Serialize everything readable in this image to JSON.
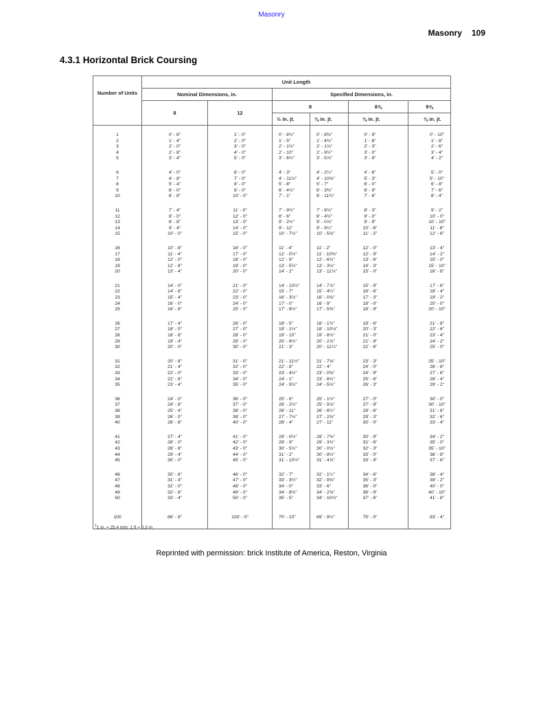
{
  "running_header": "Masonry",
  "page_header": {
    "section": "Masonry",
    "page_number": "109"
  },
  "heading": "4.3.1 Horizontal Brick Coursing",
  "table": {
    "header": {
      "number_of_units": "Number of Units",
      "unit_length": "Unit Length",
      "nominal": "Nominal Dimensions, in.",
      "specified": "Specified Dimensions, in.",
      "nominal_8": "8",
      "nominal_12": "12",
      "spec_8": "8",
      "spec_8_5_8": "8⅝",
      "spec_9_5_8": "9⅝",
      "joint_half": "½ in. jt.",
      "joint_3_8_a": "⅜ in. jt.",
      "joint_3_8_b": "⅜ in. jt.",
      "joint_3_8_c": "⅜ in. jt."
    },
    "groups": [
      [
        [
          "1",
          "0' - 8\"",
          "1' - 0\"",
          "0' - 8½\"",
          "0' - 8⅜\"",
          "0' - 9\"",
          "0' - 10\""
        ],
        [
          "2",
          "1' - 4\"",
          "2' - 0\"",
          "1' - 5\"",
          "1' - 4¾\"",
          "1' - 6\"",
          "1' - 8\""
        ],
        [
          "3",
          "2' - 0\"",
          "3' - 0\"",
          "2' - 1½\"",
          "2' - 1⅛\"",
          "2' - 3\"",
          "2' - 6\""
        ],
        [
          "4",
          "2' - 8\"",
          "4' - 0\"",
          "2' - 10\"",
          "2' - 9½\"",
          "3' - 0\"",
          "3' - 4\""
        ],
        [
          "5",
          "3' - 4\"",
          "5' - 0\"",
          "3' - 6½\"",
          "3' - 5⅞\"",
          "3' - 9\"",
          "4' - 2\""
        ]
      ],
      [
        [
          "6",
          "4' - 0\"",
          "6' - 0\"",
          "4' - 3\"",
          "4' - 2¼\"",
          "4' - 6\"",
          "5' - 0\""
        ],
        [
          "7",
          "4' - 8\"",
          "7' - 0\"",
          "4' - 11½\"",
          "4' - 10⅝\"",
          "5' - 3\"",
          "5' - 10\""
        ],
        [
          "8",
          "5' - 4\"",
          "8' - 0\"",
          "5' - 8\"",
          "5' - 7\"",
          "6' - 0\"",
          "6' - 8\""
        ],
        [
          "9",
          "6' - 0\"",
          "9' - 0\"",
          "6' - 4½\"",
          "6' - 3⅜\"",
          "6' - 9\"",
          "7' - 6\""
        ],
        [
          "10",
          "6' - 8\"",
          "10' - 0\"",
          "7' - 1\"",
          "6' - 11¾\"",
          "7' - 6\"",
          "8' - 4\""
        ]
      ],
      [
        [
          "11",
          "7' - 4\"",
          "11' - 0\"",
          "7' - 9½\"",
          "7' - 8⅛\"",
          "8' - 3\"",
          "9' - 2\""
        ],
        [
          "12",
          "8' - 0\"",
          "12' - 0\"",
          "8' - 6\"",
          "8' - 4½\"",
          "9' - 0\"",
          "10' - 0\""
        ],
        [
          "13",
          "8' - 8\"",
          "13' - 0\"",
          "9' - 2½\"",
          "9' - 0⅞\"",
          "9' - 9\"",
          "10' - 10\""
        ],
        [
          "14",
          "9' - 4\"",
          "14' - 0\"",
          "9' - 11\"",
          "9' - 9¼\"",
          "10' - 6\"",
          "11' - 8\""
        ],
        [
          "15",
          "10' - 0\"",
          "15' - 0\"",
          "10' - 7½\"",
          "10' - 5⅝\"",
          "11' - 3\"",
          "12' - 6\""
        ]
      ],
      [
        [
          "16",
          "10' - 8\"",
          "16' - 0\"",
          "11' - 4\"",
          "11' - 2\"",
          "12' - 0\"",
          "13' - 4\""
        ],
        [
          "17",
          "11' - 4\"",
          "17' - 0\"",
          "12' - 0½\"",
          "11' - 10⅜\"",
          "12' - 9\"",
          "14' - 2\""
        ],
        [
          "18",
          "12' - 0\"",
          "18' - 0\"",
          "12' - 9\"",
          "12' - 6¾\"",
          "13' - 6\"",
          "15' - 0\""
        ],
        [
          "19",
          "12' - 8\"",
          "19' - 0\"",
          "13' - 5½\"",
          "13' - 3⅛\"",
          "14' - 3\"",
          "15' - 10\""
        ],
        [
          "20",
          "13' - 4\"",
          "20' - 0\"",
          "14' - 2\"",
          "13' - 11½\"",
          "15' - 0\"",
          "16' - 8\""
        ]
      ],
      [
        [
          "21",
          "14' - 0\"",
          "21' - 0\"",
          "14' - 10½\"",
          "14' - 7⅞\"",
          "15' - 9\"",
          "17' - 6\""
        ],
        [
          "22",
          "14' - 8\"",
          "22' - 0\"",
          "15' - 7\"",
          "15' - 4¼\"",
          "16' - 6\"",
          "18' - 4\""
        ],
        [
          "23",
          "15' - 4\"",
          "23' - 0\"",
          "16' - 3½\"",
          "16' - 0⅝\"",
          "17' - 3\"",
          "19' - 2\""
        ],
        [
          "24",
          "16' - 0\"",
          "24' - 0\"",
          "17' - 0\"",
          "16' - 9\"",
          "18' - 0\"",
          "20' - 0\""
        ],
        [
          "25",
          "16' - 8\"",
          "25' - 0\"",
          "17' - 8½\"",
          "17' - 5⅜\"",
          "18' - 9\"",
          "20' - 10\""
        ]
      ],
      [
        [
          "26",
          "17' - 4\"",
          "26' - 0\"",
          "18' - 5\"",
          "18' - 1¾\"",
          "19' - 6\"",
          "21' - 8\""
        ],
        [
          "27",
          "18' - 0\"",
          "27' - 0\"",
          "19' - 1½\"",
          "18' - 10⅛\"",
          "20' - 3\"",
          "22' - 6\""
        ],
        [
          "28",
          "18' - 8\"",
          "28' - 0\"",
          "19' - 10\"",
          "19' - 6½\"",
          "21' - 0\"",
          "23' - 4\""
        ],
        [
          "29",
          "19' - 4\"",
          "29' - 0\"",
          "20' - 6½\"",
          "20' - 2⅞\"",
          "21' - 9\"",
          "24' - 2\""
        ],
        [
          "30",
          "20' - 0\"",
          "30' - 0\"",
          "21' - 3\"",
          "20' - 11¼\"",
          "22' - 6\"",
          "25' - 0\""
        ]
      ],
      [
        [
          "31",
          "20' - 8\"",
          "31' - 0\"",
          "21' - 11½\"",
          "21' - 7⅝\"",
          "23' - 3\"",
          "25' - 10\""
        ],
        [
          "32",
          "21' - 4\"",
          "32' - 0\"",
          "22' - 8\"",
          "22' - 4\"",
          "24' - 0\"",
          "26' - 8\""
        ],
        [
          "33",
          "22' - 0\"",
          "33' - 0\"",
          "23' - 4½\"",
          "23' - 0⅜\"",
          "24' - 9\"",
          "27' - 6\""
        ],
        [
          "34",
          "22' - 8\"",
          "34' - 0\"",
          "24' - 1\"",
          "23' - 8¾\"",
          "25' - 6\"",
          "28' - 4\""
        ],
        [
          "35",
          "23' - 4\"",
          "35' - 0\"",
          "24' - 9½\"",
          "24' - 5⅛\"",
          "26' - 3\"",
          "29' - 2\""
        ]
      ],
      [
        [
          "36",
          "24' - 0\"",
          "36' - 0\"",
          "25' - 6\"",
          "25' - 1½\"",
          "27' - 0\"",
          "30' - 0\""
        ],
        [
          "37",
          "24' - 8\"",
          "37' - 0\"",
          "26' - 2½\"",
          "25' - 9⅞\"",
          "27' - 9\"",
          "30' - 10\""
        ],
        [
          "38",
          "25' - 4\"",
          "38' - 0\"",
          "26' - 11\"",
          "26' - 6¼\"",
          "28' - 6\"",
          "31' - 8\""
        ],
        [
          "39",
          "26' - 0\"",
          "39' - 0\"",
          "27' - 7½\"",
          "27' - 2⅝\"",
          "29' - 3\"",
          "32' - 6\""
        ],
        [
          "40",
          "26' - 8\"",
          "40' - 0\"",
          "28' - 4\"",
          "27' - 11\"",
          "30' - 0\"",
          "33' - 4\""
        ]
      ],
      [
        [
          "41",
          "27' - 4\"",
          "41' - 0\"",
          "29' - 0½\"",
          "28' - 7⅜\"",
          "30' - 9\"",
          "34' - 2\""
        ],
        [
          "42",
          "28' - 0\"",
          "42' - 0\"",
          "29' - 9\"",
          "29' - 3¾\"",
          "31' - 6\"",
          "35' - 0\""
        ],
        [
          "43",
          "28' - 8\"",
          "43' - 0\"",
          "30' - 5½\"",
          "30' - 0⅛\"",
          "32' - 3\"",
          "35' - 10\""
        ],
        [
          "44",
          "29' - 4\"",
          "44' - 0\"",
          "31' - 2\"",
          "30' - 8½\"",
          "33' - 0\"",
          "36' - 8\""
        ],
        [
          "45",
          "30' - 0\"",
          "45' - 0\"",
          "31' - 10½\"",
          "31' - 4⅞\"",
          "33' - 9\"",
          "37' - 6\""
        ]
      ],
      [
        [
          "46",
          "30' - 8\"",
          "46' - 0\"",
          "32' - 7\"",
          "32' - 1¼\"",
          "34' - 6\"",
          "38' - 4\""
        ],
        [
          "47",
          "31' - 4\"",
          "47' - 0\"",
          "33' - 3½\"",
          "32' - 9⅝\"",
          "35' - 3\"",
          "39' - 2\""
        ],
        [
          "48",
          "32' - 0\"",
          "48' - 0\"",
          "34' - 0\"",
          "33' - 6\"",
          "36' - 0\"",
          "40' - 0\""
        ],
        [
          "49",
          "32' - 8\"",
          "49' - 0\"",
          "34' - 8½\"",
          "34' - 2⅜\"",
          "36' - 9\"",
          "40' - 10\""
        ],
        [
          "50",
          "33' - 4\"",
          "50' - 0\"",
          "35' - 5\"",
          "34' - 10¾\"",
          "37' - 6\"",
          "41' - 8\""
        ]
      ],
      [
        [
          "100",
          "66' - 8\"",
          "100' - 0\"",
          "70' - 10\"",
          "69' - 9½\"",
          "75' - 0\"",
          "83' - 4\""
        ]
      ]
    ]
  },
  "footnote": {
    "marker": "1",
    "text": "1 in. = 25.4 mm; 1 ft = 0.3 m"
  },
  "reprint": "Reprinted with permission: brick Institute of America, Reston, Virginia"
}
